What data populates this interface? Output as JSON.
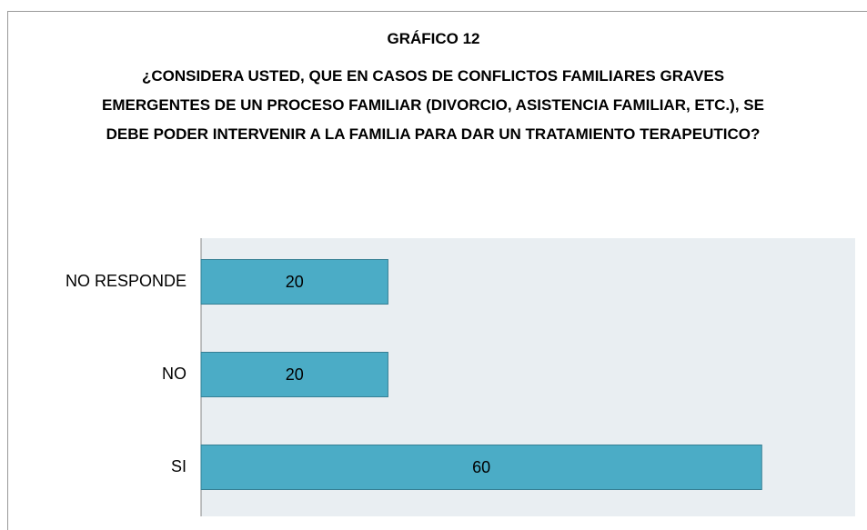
{
  "chart_data": {
    "type": "bar",
    "orientation": "horizontal",
    "title": "GRÁFICO 12",
    "subtitle": "¿CONSIDERA USTED, QUE EN CASOS DE CONFLICTOS FAMILIARES GRAVES EMERGENTES DE UN PROCESO FAMILIAR (DIVORCIO, ASISTENCIA FAMILIAR, ETC.), SE DEBE PODER INTERVENIR A LA FAMILIA PARA DAR UN TRATAMIENTO TERAPEUTICO?",
    "categories": [
      "NO RESPONDE",
      "NO",
      "SI"
    ],
    "values": [
      20,
      20,
      60
    ],
    "color": "#4bacc6",
    "xlim": [
      0,
      70
    ],
    "grid": false
  }
}
